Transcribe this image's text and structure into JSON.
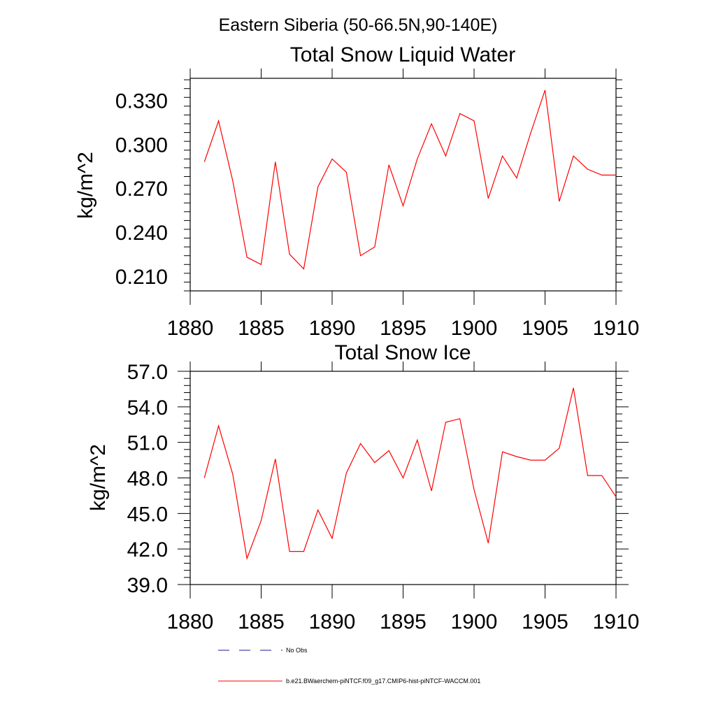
{
  "page_title": "Eastern Siberia (50-66.5N,90-140E)",
  "chart_data": [
    {
      "type": "line",
      "title": "Total Snow Liquid Water",
      "ylabel": "kg/m^2",
      "xlabel": "",
      "xlim": [
        1880,
        1910
      ],
      "ylim": [
        0.2,
        0.345
      ],
      "xticks": [
        "1880",
        "1885",
        "1890",
        "1895",
        "1900",
        "1905",
        "1910"
      ],
      "yticks": [
        "0.210",
        "0.240",
        "0.270",
        "0.300",
        "0.330"
      ],
      "series": [
        {
          "name": "b.e21.BWaerchem-piNTCF.f09_g17.CMIP6-hist-piNTCF-WACCM.001",
          "color": "#ff0000",
          "x": [
            1881,
            1882,
            1883,
            1884,
            1885,
            1886,
            1887,
            1888,
            1889,
            1890,
            1891,
            1892,
            1893,
            1894,
            1895,
            1896,
            1897,
            1898,
            1899,
            1900,
            1901,
            1902,
            1903,
            1904,
            1905,
            1906,
            1907,
            1908,
            1909,
            1910
          ],
          "y": [
            0.288,
            0.316,
            0.275,
            0.223,
            0.218,
            0.288,
            0.225,
            0.215,
            0.271,
            0.29,
            0.281,
            0.224,
            0.23,
            0.286,
            0.258,
            0.29,
            0.314,
            0.292,
            0.321,
            0.316,
            0.263,
            0.292,
            0.277,
            0.308,
            0.337,
            0.261,
            0.292,
            0.283,
            0.279,
            0.279
          ]
        }
      ]
    },
    {
      "type": "line",
      "title": "Total Snow Ice",
      "ylabel": "kg/m^2",
      "xlabel": "",
      "xlim": [
        1880,
        1910
      ],
      "ylim": [
        39.0,
        57.0
      ],
      "xticks": [
        "1880",
        "1885",
        "1890",
        "1895",
        "1900",
        "1905",
        "1910"
      ],
      "yticks": [
        "39.0",
        "42.0",
        "45.0",
        "48.0",
        "51.0",
        "54.0",
        "57.0"
      ],
      "series": [
        {
          "name": "b.e21.BWaerchem-piNTCF.f09_g17.CMIP6-hist-piNTCF-WACCM.001",
          "color": "#ff0000",
          "x": [
            1881,
            1882,
            1883,
            1884,
            1885,
            1886,
            1887,
            1888,
            1889,
            1890,
            1891,
            1892,
            1893,
            1894,
            1895,
            1896,
            1897,
            1898,
            1899,
            1900,
            1901,
            1902,
            1903,
            1904,
            1905,
            1906,
            1907,
            1908,
            1909,
            1910
          ],
          "y": [
            48.0,
            52.4,
            48.3,
            41.2,
            44.4,
            49.6,
            41.8,
            41.8,
            45.3,
            42.9,
            48.4,
            50.9,
            49.3,
            50.3,
            48.0,
            51.2,
            46.9,
            52.7,
            53.0,
            47.0,
            42.5,
            50.2,
            49.8,
            49.5,
            49.5,
            50.5,
            55.6,
            48.2,
            48.2,
            46.4
          ]
        }
      ]
    }
  ],
  "legend": {
    "items": [
      {
        "label": "No Obs",
        "color": "#1a1a8c",
        "dash": "dashed"
      },
      {
        "label": "b.e21.BWaerchem-piNTCF.f09_g17.CMIP6-hist-piNTCF-WACCM.001",
        "color": "#ff0000",
        "dash": "solid"
      }
    ]
  }
}
